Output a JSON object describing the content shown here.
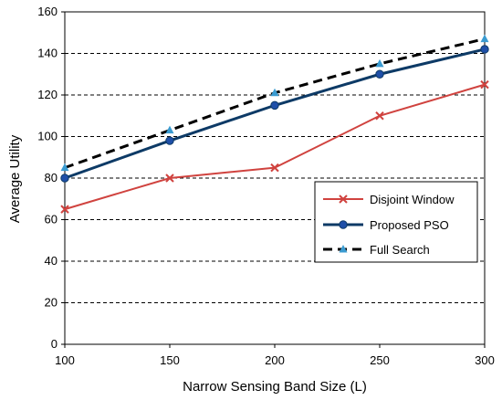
{
  "chart_data": {
    "type": "line",
    "xlabel": "Narrow Sensing Band Size (L)",
    "ylabel": "Average Utility",
    "x": [
      100,
      150,
      200,
      250,
      300
    ],
    "xticks": [
      100,
      150,
      200,
      250,
      300
    ],
    "yticks": [
      0,
      20,
      40,
      60,
      80,
      100,
      120,
      140,
      160
    ],
    "xlim": [
      100,
      300
    ],
    "ylim": [
      0,
      160
    ],
    "grid": "horizontal dashed",
    "legend_position": "lower-right",
    "series": [
      {
        "name": "Disjoint Window",
        "values": [
          65,
          80,
          85,
          110,
          125
        ],
        "color": "#d0433f",
        "marker": "x",
        "line": "solid"
      },
      {
        "name": "Proposed PSO",
        "values": [
          80,
          98,
          115,
          130,
          142
        ],
        "color": "#0d3a66",
        "marker": "circle",
        "line": "solid"
      },
      {
        "name": "Full Search",
        "values": [
          85,
          103,
          121,
          135,
          147
        ],
        "color": "#000000",
        "marker": "triangle",
        "marker_color": "#3a9bd1",
        "line": "dashed"
      }
    ]
  }
}
